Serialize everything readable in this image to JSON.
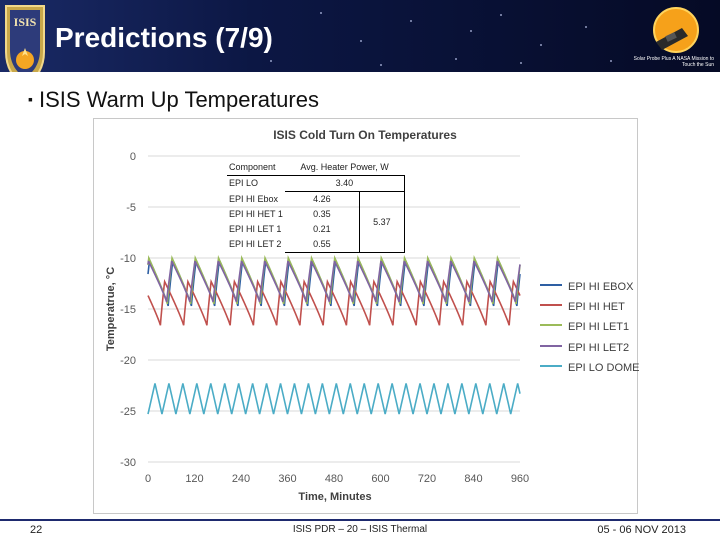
{
  "header": {
    "title": "Predictions (7/9)",
    "logo_text": "ISIS",
    "mission_logo_caption": "Solar Probe Plus\nA NASA Mission to Touch the Sun"
  },
  "bullet": {
    "text": "ISIS Warm Up Temperatures"
  },
  "table": {
    "header": [
      "Component",
      "Avg. Heater Power, W"
    ],
    "rows": [
      {
        "component": "EPI LO",
        "power": "3.40"
      },
      {
        "component": "EPI HI Ebox",
        "power": "4.26"
      },
      {
        "component": "EPI HI HET 1",
        "power": "0.35"
      },
      {
        "component": "EPI HI LET 1",
        "power": "0.21"
      },
      {
        "component": "EPI HI LET 2",
        "power": "0.55"
      }
    ],
    "epi_hi_total": "5.37"
  },
  "chart_data": {
    "type": "line",
    "title": "ISIS Cold Turn On Temperatures",
    "xlabel": "Time, Minutes",
    "ylabel": "Temperatrue, °C",
    "xlim": [
      0,
      960
    ],
    "ylim": [
      -30,
      0
    ],
    "xticks": [
      "0",
      "120",
      "240",
      "360",
      "480",
      "600",
      "720",
      "840",
      "960"
    ],
    "yticks": [
      "0",
      "-5",
      "-10",
      "-15",
      "-20",
      "-25",
      "-30"
    ],
    "grid": "horizontal",
    "legend_position": "right",
    "period_minutes": 60,
    "series": [
      {
        "name": "EPI HI EBOX",
        "color": "#2e5fa3",
        "min": -14.7,
        "max": -10.2
      },
      {
        "name": "EPI HI HET",
        "color": "#c0504d",
        "min": -16.6,
        "max": -12.3
      },
      {
        "name": "EPI HI LET1",
        "color": "#9bbb59",
        "min": -14.5,
        "max": -10.0
      },
      {
        "name": "EPI HI LET2",
        "color": "#8064a2",
        "min": -14.3,
        "max": -10.3
      },
      {
        "name": "EPI LO DOME",
        "color": "#4bacc6",
        "min": -25.3,
        "max": -22.3
      }
    ]
  },
  "footer": {
    "page_number": "22",
    "center_text": "ISIS PDR – 20 – ISIS Thermal",
    "date": "05 - 06 NOV 2013"
  }
}
